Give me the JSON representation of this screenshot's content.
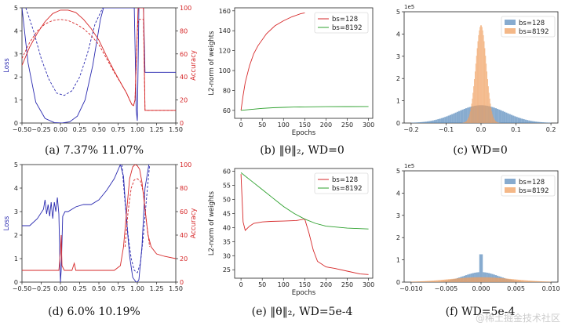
{
  "watermark": "@稀土掘金技术社区",
  "colors": {
    "blue": "#2a2ab0",
    "red": "#d62728",
    "green": "#2ca02c",
    "blueHist": "#5f8fbf",
    "orangeHist": "#f0a060"
  },
  "chart_data": [
    {
      "id": "a",
      "type": "line",
      "caption": "(a)  7.37%         11.07%",
      "xlim": [
        -0.5,
        1.5
      ],
      "ylim": [
        0,
        5
      ],
      "y2lim": [
        0,
        100
      ],
      "xticks": [
        "−0.50",
        "−0.25",
        "0.00",
        "0.25",
        "0.50",
        "0.75",
        "1.00",
        "1.25",
        "1.50"
      ],
      "yticks": [
        "0",
        "1",
        "2",
        "3",
        "4",
        "5"
      ],
      "y2ticks": [
        "0",
        "20",
        "40",
        "60",
        "80",
        "100"
      ],
      "ylabel": "Loss",
      "y2label": "Accuracy",
      "series": [
        {
          "name": "loss_train",
          "axis": "left",
          "color": "blue",
          "dash": false,
          "x": [
            -0.5,
            -0.42,
            -0.32,
            -0.2,
            -0.08,
            0.02,
            0.12,
            0.22,
            0.32,
            0.42,
            0.52,
            0.56,
            0.96,
            0.975,
            0.985,
            1.0,
            1.02,
            1.04,
            1.06,
            1.08,
            1.1,
            1.5
          ],
          "y": [
            5,
            2.6,
            0.9,
            0.2,
            0.02,
            0,
            0.05,
            0.3,
            1,
            2.5,
            4.5,
            5,
            5,
            2.5,
            0.6,
            0.1,
            5,
            5,
            5,
            5,
            2.2,
            2.2
          ]
        },
        {
          "name": "loss_test",
          "axis": "left",
          "color": "blue",
          "dash": true,
          "x": [
            -0.45,
            -0.35,
            -0.25,
            -0.15,
            -0.05,
            0.05,
            0.15,
            0.25,
            0.35,
            0.45,
            0.55
          ],
          "y": [
            5,
            4,
            2.8,
            1.9,
            1.3,
            1.2,
            1.4,
            2,
            3,
            4.3,
            5
          ]
        },
        {
          "name": "acc_train",
          "axis": "right",
          "color": "red",
          "dash": false,
          "x": [
            -0.5,
            -0.4,
            -0.3,
            -0.2,
            -0.1,
            0,
            0.1,
            0.2,
            0.3,
            0.4,
            0.5,
            0.6,
            0.7,
            0.8,
            0.86,
            0.9,
            0.93,
            0.95,
            0.97,
            0.98,
            0.99,
            1.0,
            1.01,
            1.02,
            1.04,
            1.06,
            1.08,
            1.1,
            1.5
          ],
          "y": [
            50,
            66,
            78,
            88,
            95,
            98,
            98,
            96,
            90,
            82,
            72,
            58,
            45,
            33,
            26,
            20,
            16,
            15,
            20,
            40,
            60,
            80,
            100,
            100,
            100,
            100,
            100,
            11,
            11
          ]
        },
        {
          "name": "acc_test",
          "axis": "right",
          "color": "red",
          "dash": true,
          "x": [
            -0.5,
            -0.4,
            -0.3,
            -0.2,
            -0.1,
            0,
            0.1,
            0.2,
            0.3,
            0.4,
            0.5,
            0.6,
            0.7,
            0.8,
            0.86,
            0.9,
            0.93,
            0.95,
            0.97,
            0.98,
            0.99,
            1.0,
            1.01,
            1.02,
            1.04,
            1.06,
            1.08,
            1.1,
            1.5
          ],
          "y": [
            56,
            70,
            80,
            86,
            89,
            90,
            89,
            86,
            82,
            76,
            68,
            56,
            44,
            33,
            26,
            20,
            16,
            15,
            20,
            40,
            60,
            78,
            88,
            90,
            90,
            90,
            90,
            11,
            11
          ]
        }
      ]
    },
    {
      "id": "b",
      "type": "line",
      "caption": "(b)  ‖θ‖₂, WD=0",
      "xlim": [
        -15,
        310
      ],
      "ylim": [
        52,
        163
      ],
      "xticks": [
        "0",
        "50",
        "100",
        "150",
        "200",
        "250",
        "300"
      ],
      "xtickvals": [
        0,
        50,
        100,
        150,
        200,
        250,
        300
      ],
      "yticks": [
        "60",
        "80",
        "100",
        "120",
        "140",
        "160"
      ],
      "ytickvals": [
        60,
        80,
        100,
        120,
        140,
        160
      ],
      "xlabel": "Epochs",
      "ylabel": "L2-norm of weights",
      "legend": [
        "bs=128",
        "bs=8192"
      ],
      "series": [
        {
          "name": "bs=128",
          "color": "red",
          "x": [
            0,
            5,
            10,
            20,
            30,
            40,
            60,
            80,
            100,
            120,
            140,
            150
          ],
          "y": [
            60,
            75,
            88,
            105,
            117,
            125,
            137,
            145,
            150,
            154,
            157,
            158
          ]
        },
        {
          "name": "bs=8192",
          "color": "green",
          "x": [
            0,
            25,
            50,
            75,
            100,
            125,
            150,
            200,
            250,
            300
          ],
          "y": [
            60,
            61,
            62,
            62.6,
            63,
            63.3,
            63.5,
            63.7,
            63.8,
            63.9
          ]
        }
      ]
    },
    {
      "id": "c",
      "type": "histogram",
      "caption": "(c)  WD=0",
      "exponent": "1e5",
      "xlim": [
        -0.22,
        0.22
      ],
      "ylim": [
        0,
        5
      ],
      "xticks": [
        "−0.2",
        "−0.1",
        "0.0",
        "0.1",
        "0.2"
      ],
      "xtickvals": [
        -0.2,
        -0.1,
        0,
        0.1,
        0.2
      ],
      "yticks": [
        "0",
        "1",
        "2",
        "3",
        "4",
        "5"
      ],
      "legend": [
        "bs=128",
        "bs=8192"
      ],
      "series": [
        {
          "name": "bs=128",
          "color": "blueHist",
          "center": 0,
          "sigma": 0.07,
          "peak": 0.8,
          "range": [
            -0.2,
            0.2
          ]
        },
        {
          "name": "bs=8192",
          "color": "orangeHist",
          "center": 0,
          "sigma": 0.015,
          "peak": 4.4,
          "range": [
            -0.08,
            0.08
          ]
        }
      ]
    },
    {
      "id": "d",
      "type": "line",
      "caption": "(d)  6.0%         10.19%",
      "xlim": [
        -0.5,
        1.5
      ],
      "ylim": [
        0,
        5
      ],
      "y2lim": [
        0,
        100
      ],
      "xticks": [
        "−0.50",
        "−0.25",
        "0.00",
        "0.25",
        "0.50",
        "0.75",
        "1.00",
        "1.25",
        "1.50"
      ],
      "yticks": [
        "0",
        "1",
        "2",
        "3",
        "4",
        "5"
      ],
      "y2ticks": [
        "0",
        "20",
        "40",
        "60",
        "80",
        "100"
      ],
      "ylabel": "Loss",
      "y2label": "Accuracy",
      "series": [
        {
          "name": "loss_train",
          "axis": "left",
          "color": "blue",
          "dash": false,
          "x": [
            -0.5,
            -0.4,
            -0.3,
            -0.22,
            -0.2,
            -0.18,
            -0.16,
            -0.14,
            -0.12,
            -0.1,
            -0.08,
            -0.06,
            -0.04,
            -0.02,
            0,
            0.01,
            0.03,
            0.06,
            0.1,
            0.2,
            0.3,
            0.4,
            0.5,
            0.6,
            0.7,
            0.78,
            0.82,
            0.86,
            0.9,
            0.94,
            0.98,
            1.0,
            1.02,
            1.06,
            1.1,
            1.15
          ],
          "y": [
            2.4,
            2.4,
            2.7,
            3.1,
            3.5,
            2.9,
            3.3,
            2.8,
            3.4,
            2.7,
            3.4,
            3.0,
            3.6,
            2.9,
            0,
            0.5,
            2.8,
            3.0,
            3.0,
            3.2,
            3.3,
            3.3,
            3.5,
            3.9,
            4.4,
            5,
            4.5,
            2.6,
            1.1,
            0.2,
            0.02,
            0,
            0.1,
            1.5,
            4,
            5
          ]
        },
        {
          "name": "loss_test",
          "axis": "left",
          "color": "blue",
          "dash": true,
          "x": [
            0.8,
            0.84,
            0.88,
            0.92,
            0.96,
            1.0,
            1.04,
            1.08,
            1.12,
            1.16
          ],
          "y": [
            5,
            3.4,
            2,
            1,
            0.5,
            0.4,
            0.8,
            2,
            3.6,
            5
          ]
        },
        {
          "name": "acc_train",
          "axis": "right",
          "color": "red",
          "dash": false,
          "x": [
            -0.5,
            -0.05,
            -0.02,
            0,
            0.01,
            0.02,
            0.05,
            0.1,
            0.15,
            0.18,
            0.2,
            0.22,
            0.25,
            0.3,
            0.5,
            0.7,
            0.78,
            0.82,
            0.86,
            0.9,
            0.94,
            0.97,
            1.0,
            1.03,
            1.06,
            1.1,
            1.14,
            1.18,
            1.25,
            1.35,
            1.5
          ],
          "y": [
            10,
            10,
            10,
            25,
            40,
            14,
            10,
            10,
            10,
            16,
            10,
            10,
            10,
            10,
            10,
            10,
            14,
            30,
            60,
            88,
            98,
            100,
            99,
            96,
            85,
            62,
            40,
            30,
            24,
            22,
            20
          ]
        },
        {
          "name": "acc_test",
          "axis": "right",
          "color": "red",
          "dash": true,
          "x": [
            0.84,
            0.88,
            0.92,
            0.96,
            1.0,
            1.04,
            1.08,
            1.12,
            1.16
          ],
          "y": [
            30,
            60,
            80,
            87,
            88,
            86,
            76,
            50,
            30
          ]
        }
      ]
    },
    {
      "id": "e",
      "type": "line",
      "caption": "(e)  ‖θ‖₂, WD=5e-4",
      "xlim": [
        -15,
        310
      ],
      "ylim": [
        22,
        61
      ],
      "xticks": [
        "0",
        "50",
        "100",
        "150",
        "200",
        "250",
        "300"
      ],
      "xtickvals": [
        0,
        50,
        100,
        150,
        200,
        250,
        300
      ],
      "yticks": [
        "25",
        "30",
        "35",
        "40",
        "45",
        "50",
        "55",
        "60"
      ],
      "ytickvals": [
        25,
        30,
        35,
        40,
        45,
        50,
        55,
        60
      ],
      "xlabel": "Epochs",
      "ylabel": "L2-norm of weights",
      "legend": [
        "bs=128",
        "bs=8192"
      ],
      "series": [
        {
          "name": "bs=128",
          "color": "red",
          "x": [
            0,
            5,
            10,
            20,
            30,
            50,
            70,
            100,
            130,
            150,
            160,
            170,
            180,
            200,
            220,
            250,
            280,
            300
          ],
          "y": [
            59,
            42,
            39,
            40.5,
            41.5,
            42,
            42.2,
            42.3,
            42.5,
            43,
            38,
            32,
            28,
            26,
            25.5,
            24.5,
            23.5,
            23.3
          ]
        },
        {
          "name": "bs=8192",
          "color": "green",
          "x": [
            0,
            25,
            50,
            75,
            100,
            125,
            150,
            175,
            200,
            250,
            300
          ],
          "y": [
            59.5,
            56.5,
            53.5,
            50.5,
            47.5,
            45,
            43,
            41.5,
            40.5,
            39.8,
            39.5
          ]
        }
      ]
    },
    {
      "id": "f",
      "type": "histogram",
      "caption": "(f)  WD=5e-4",
      "exponent": "1e5",
      "xlim": [
        -0.011,
        0.011
      ],
      "ylim": [
        0,
        5
      ],
      "xticks": [
        "−0.010",
        "−0.005",
        "0.000",
        "0.005",
        "0.010"
      ],
      "xtickvals": [
        -0.01,
        -0.005,
        0,
        0.005,
        0.01
      ],
      "yticks": [
        "0",
        "1",
        "2",
        "3",
        "4",
        "5"
      ],
      "legend": [
        "bs=128",
        "bs=8192"
      ],
      "series": [
        {
          "name": "bs=128",
          "color": "blueHist",
          "center": 0,
          "sigma": 0.0025,
          "peak": 0.45,
          "spike": 1.25,
          "range": [
            -0.01,
            0.01
          ]
        },
        {
          "name": "bs=8192",
          "color": "orangeHist",
          "center": 0,
          "sigma": 0.0045,
          "peak": 0.22,
          "range": [
            -0.01,
            0.01
          ]
        }
      ]
    }
  ]
}
